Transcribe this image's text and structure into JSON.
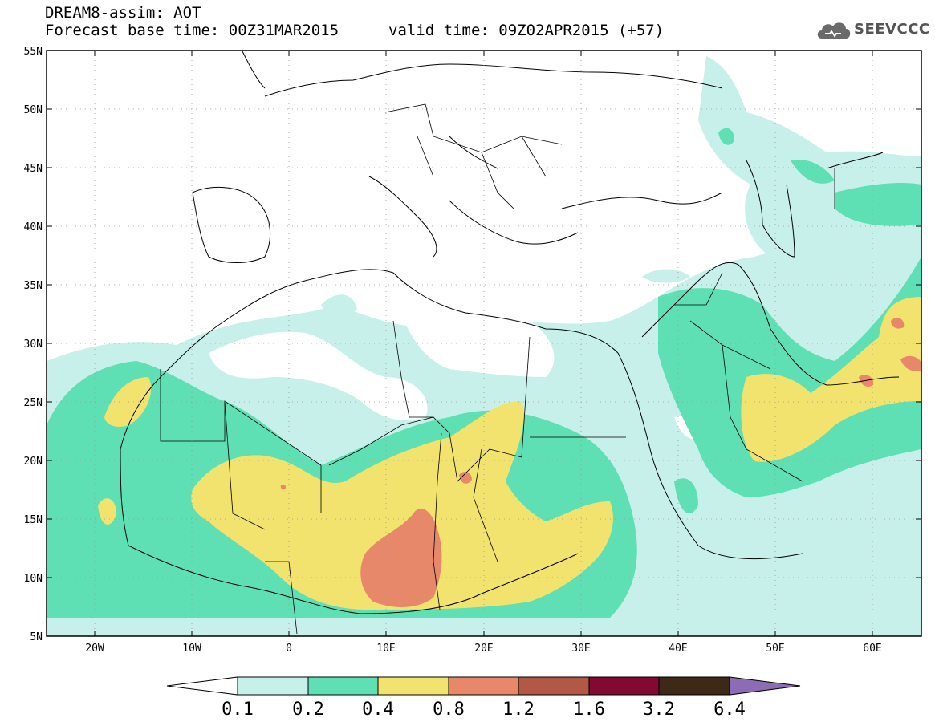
{
  "header": {
    "title": "DREAM8-assim: AOT",
    "forecast_base": "Forecast base time: 00Z31MAR2015",
    "valid_time": "valid time: 09Z02APR2015 (+57)"
  },
  "logo": {
    "text": "SEEVCCC",
    "icon": "cloud-icon"
  },
  "map": {
    "lon_range": [
      -25,
      65
    ],
    "lat_range": [
      5,
      55
    ],
    "lat_ticks": [
      "55N",
      "50N",
      "45N",
      "40N",
      "35N",
      "30N",
      "25N",
      "20N",
      "15N",
      "10N",
      "5N"
    ],
    "lon_ticks": [
      "20W",
      "10W",
      "0",
      "10E",
      "20E",
      "30E",
      "40E",
      "50E",
      "60E"
    ],
    "grid": "dotted"
  },
  "colorbar": {
    "labels": [
      "0.1",
      "0.2",
      "0.4",
      "0.8",
      "1.2",
      "1.6",
      "3.2",
      "6.4"
    ],
    "colors": [
      "#ffffff",
      "#c8f0ea",
      "#5ee0b4",
      "#f2e26e",
      "#e8886a",
      "#b25846",
      "#820a32",
      "#3e2818",
      "#8c6cb4"
    ]
  }
}
